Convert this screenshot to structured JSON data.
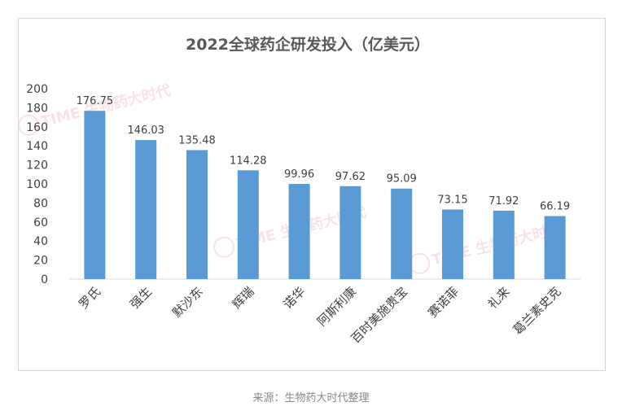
{
  "chart_data": {
    "type": "bar",
    "title": "2022全球药企研发投入（亿美元）",
    "xlabel": "",
    "ylabel": "",
    "categories": [
      "罗氏",
      "强生",
      "默沙东",
      "辉瑞",
      "诺华",
      "阿斯利康",
      "百时美施贵宝",
      "赛诺菲",
      "礼来",
      "葛兰素史克"
    ],
    "values": [
      176.75,
      146.03,
      135.48,
      114.28,
      99.96,
      97.62,
      95.09,
      73.15,
      71.92,
      66.19
    ],
    "value_labels": [
      "176.75",
      "146.03",
      "135.48",
      "114.28",
      "99.96",
      "97.62",
      "95.09",
      "73.15",
      "71.92",
      "66.19"
    ],
    "ylim": [
      0,
      200
    ],
    "yticks": [
      0,
      20,
      40,
      60,
      80,
      100,
      120,
      140,
      160,
      180,
      200
    ],
    "grid": false,
    "bar_color": "#5b9bd5",
    "watermark": "TIME 生物药大时代"
  },
  "source_text": "来源：生物药大时代整理"
}
